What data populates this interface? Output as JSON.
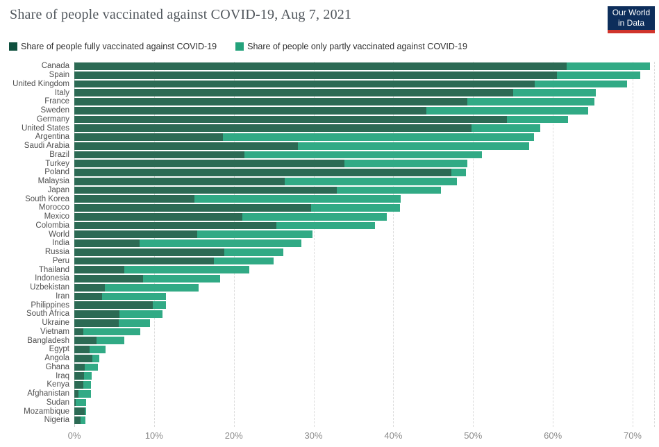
{
  "header": {
    "title": "Share of people vaccinated against COVID-19, Aug 7, 2021"
  },
  "logo": {
    "line1": "Our World",
    "line2": "in Data",
    "bg_color": "#0d2e5b",
    "accent_color": "#d0342c"
  },
  "legend": {
    "items": [
      {
        "id": "fully",
        "label": "Share of people fully vaccinated against COVID-19",
        "swatch_color": "#0f503e"
      },
      {
        "id": "partly",
        "label": "Share of people only partly vaccinated against COVID-19",
        "swatch_color": "#24a27b"
      }
    ]
  },
  "colors": {
    "fully_bar": "#2c6a54",
    "partly_bar": "#31aa85",
    "gridline": "#dcdcdc",
    "axis_text": "#8b8b8b"
  },
  "chart_data": {
    "type": "bar",
    "orientation": "horizontal",
    "stacked": true,
    "sort": "descending by total share",
    "unit": "%",
    "title": "Share of people vaccinated against COVID-19, Aug 7, 2021",
    "xlabel": "",
    "ylabel": "",
    "grid": true,
    "legend_position": "top",
    "x_axis": {
      "tick_labels": [
        "0%",
        "10%",
        "20%",
        "30%",
        "40%",
        "50%",
        "60%",
        "70%"
      ],
      "tick_values": [
        0,
        10,
        20,
        30,
        40,
        50,
        60,
        70
      ],
      "max": 72.7
    },
    "categories": [
      "Canada",
      "Spain",
      "United Kingdom",
      "Italy",
      "France",
      "Sweden",
      "Germany",
      "United States",
      "Argentina",
      "Saudi Arabia",
      "Brazil",
      "Turkey",
      "Poland",
      "Malaysia",
      "Japan",
      "South Korea",
      "Morocco",
      "Mexico",
      "Colombia",
      "World",
      "India",
      "Russia",
      "Peru",
      "Thailand",
      "Indonesia",
      "Uzbekistan",
      "Iran",
      "Philippines",
      "South Africa",
      "Ukraine",
      "Vietnam",
      "Bangladesh",
      "Egypt",
      "Angola",
      "Ghana",
      "Iraq",
      "Kenya",
      "Afghanistan",
      "Sudan",
      "Mozambique",
      "Nigeria"
    ],
    "series": [
      {
        "name": "Share of people fully vaccinated against COVID-19",
        "color": "#2c6a54",
        "values": [
          61.7,
          60.5,
          57.7,
          55.0,
          49.3,
          44.1,
          54.2,
          49.8,
          18.6,
          28.0,
          21.3,
          33.9,
          47.3,
          26.4,
          32.9,
          15.1,
          29.7,
          21.1,
          25.3,
          15.4,
          8.2,
          18.8,
          17.5,
          6.3,
          8.6,
          3.8,
          3.5,
          9.8,
          5.7,
          5.6,
          1.1,
          2.8,
          1.9,
          2.3,
          1.3,
          1.2,
          1.1,
          0.5,
          0.2,
          1.3,
          0.8
        ]
      },
      {
        "name": "Share of people only partly vaccinated against COVID-19",
        "color": "#31aa85",
        "values": [
          10.5,
          10.5,
          11.6,
          10.4,
          15.9,
          20.3,
          7.7,
          8.6,
          39.0,
          29.0,
          29.8,
          15.4,
          1.8,
          21.6,
          13.1,
          25.8,
          11.1,
          18.1,
          12.4,
          14.5,
          20.3,
          7.4,
          7.5,
          15.6,
          9.7,
          11.8,
          8.0,
          1.7,
          5.4,
          3.9,
          7.2,
          3.5,
          2.0,
          0.8,
          1.7,
          1.0,
          1.0,
          1.6,
          1.3,
          0.2,
          0.6
        ]
      }
    ]
  }
}
